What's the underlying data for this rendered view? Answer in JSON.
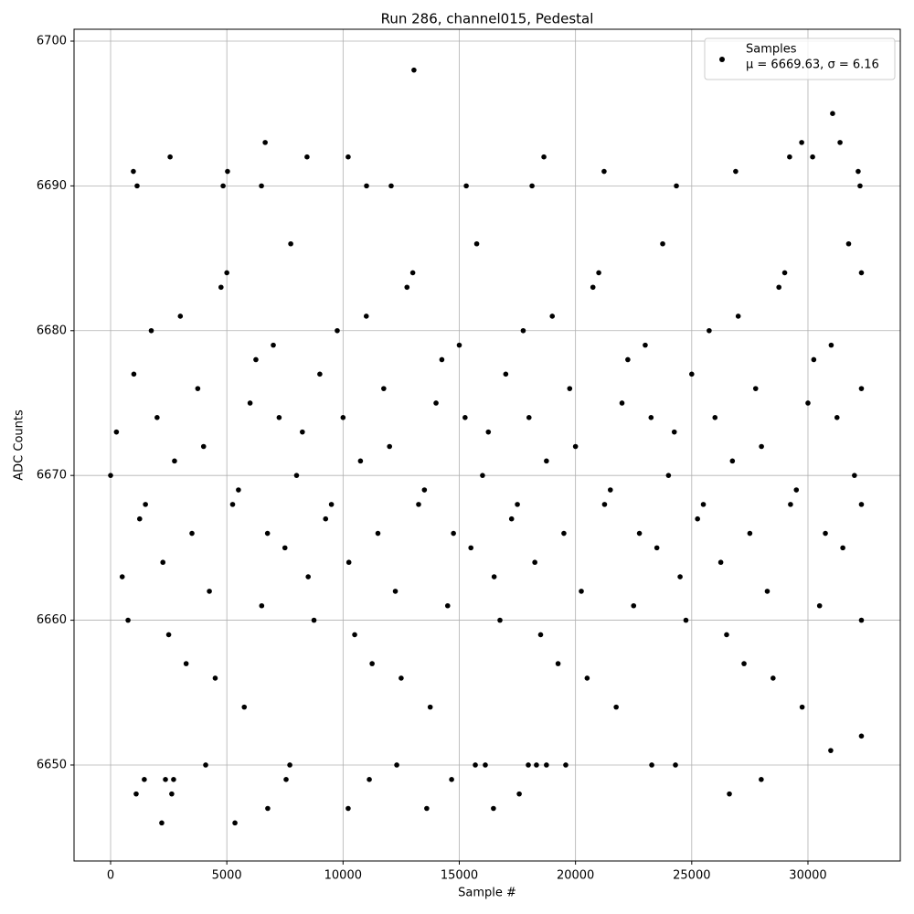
{
  "chart_data": {
    "type": "scatter",
    "title": "Run 286, channel015, Pedestal",
    "xlabel": "Sample #",
    "ylabel": "ADC Counts",
    "xlim": [
      -1573,
      33972
    ],
    "ylim": [
      6643.37,
      6700.82
    ],
    "xticks": [
      0,
      5000,
      10000,
      15000,
      20000,
      25000,
      30000
    ],
    "yticks": [
      6650,
      6660,
      6670,
      6680,
      6690,
      6700
    ],
    "grid": true,
    "legend": "upper right",
    "annotation": "μ = 6669.63, σ = 6.16",
    "series": [
      {
        "name": "Samples",
        "color": "#000000",
        "x": [
          1100,
          1450,
          2200,
          2360,
          2630,
          2710,
          5350,
          4090,
          6760,
          7550,
          7710,
          10220,
          11130,
          12310,
          13600,
          14670,
          15690,
          16120,
          16470,
          17580,
          17970,
          18320,
          18750,
          19580,
          23280,
          24300,
          26620,
          27990,
          30980,
          13050,
          31060,
          6650,
          29730,
          31380,
          2560,
          8450,
          10220,
          18640,
          29210,
          30200,
          980,
          5030,
          21230,
          26890,
          32160,
          1140,
          4840,
          6490,
          11010,
          12070,
          15300,
          18130,
          24340,
          32240,
          0,
          500,
          1000,
          1500,
          2000,
          2500,
          3000,
          3500,
          4000,
          4500,
          5000,
          5500,
          6000,
          6500,
          7000,
          7500,
          8000,
          8500,
          9000,
          9500,
          10000,
          10500,
          11000,
          11500,
          12000,
          12500,
          13000,
          13500,
          14000,
          14500,
          15000,
          15500,
          16000,
          16500,
          17000,
          17500,
          18000,
          18500,
          19000,
          19500,
          20000,
          20500,
          21000,
          21500,
          22000,
          22500,
          23000,
          23500,
          24000,
          24500,
          25000,
          25500,
          26000,
          26500,
          27000,
          27500,
          28000,
          28500,
          29000,
          29500,
          30000,
          30500,
          31000,
          31500,
          32000,
          250,
          750,
          1250,
          1750,
          2250,
          2750,
          3250,
          3750,
          4250,
          4750,
          5250,
          5750,
          6250,
          6750,
          7250,
          7750,
          8250,
          8750,
          9250,
          9750,
          10250,
          10750,
          11250,
          11750,
          12250,
          12750,
          13250,
          13750,
          14250,
          14750,
          15250,
          15750,
          16250,
          16750,
          17250,
          17750,
          18250,
          18750,
          19250,
          19750,
          20250,
          20750,
          21250,
          21750,
          22250,
          22750,
          23250,
          23750,
          24250,
          24750,
          25250,
          25750,
          26250,
          26750,
          27250,
          27750,
          28250,
          28750,
          29250,
          29750,
          30250,
          30750,
          31250,
          31750,
          32300,
          32300,
          32300,
          32300,
          32300
        ],
        "values": [
          6648,
          6649,
          6646,
          6649,
          6648,
          6649,
          6646,
          6650,
          6647,
          6649,
          6650,
          6647,
          6649,
          6650,
          6647,
          6649,
          6650,
          6650,
          6647,
          6648,
          6650,
          6650,
          6650,
          6650,
          6650,
          6650,
          6648,
          6649,
          6651,
          6698,
          6695,
          6693,
          6693,
          6693,
          6692,
          6692,
          6692,
          6692,
          6692,
          6692,
          6691,
          6691,
          6691,
          6691,
          6691,
          6690,
          6690,
          6690,
          6690,
          6690,
          6690,
          6690,
          6690,
          6690,
          6670,
          6663,
          6677,
          6668,
          6674,
          6659,
          6681,
          6666,
          6672,
          6656,
          6684,
          6669,
          6675,
          6661,
          6679,
          6665,
          6670,
          6663,
          6677,
          6668,
          6674,
          6659,
          6681,
          6666,
          6672,
          6656,
          6684,
          6669,
          6675,
          6661,
          6679,
          6665,
          6670,
          6663,
          6677,
          6668,
          6674,
          6659,
          6681,
          6666,
          6672,
          6656,
          6684,
          6669,
          6675,
          6661,
          6679,
          6665,
          6670,
          6663,
          6677,
          6668,
          6674,
          6659,
          6681,
          6666,
          6672,
          6656,
          6684,
          6669,
          6675,
          6661,
          6679,
          6665,
          6670,
          6673,
          6660,
          6667,
          6680,
          6664,
          6671,
          6657,
          6676,
          6662,
          6683,
          6668,
          6654,
          6678,
          6666,
          6674,
          6686,
          6673,
          6660,
          6667,
          6680,
          6664,
          6671,
          6657,
          6676,
          6662,
          6683,
          6668,
          6654,
          6678,
          6666,
          6674,
          6686,
          6673,
          6660,
          6667,
          6680,
          6664,
          6671,
          6657,
          6676,
          6662,
          6683,
          6668,
          6654,
          6678,
          6666,
          6674,
          6686,
          6673,
          6660,
          6667,
          6680,
          6664,
          6671,
          6657,
          6676,
          6662,
          6683,
          6668,
          6654,
          6678,
          6666,
          6674,
          6686,
          6652,
          6660,
          6668,
          6676,
          6684
        ]
      }
    ]
  }
}
